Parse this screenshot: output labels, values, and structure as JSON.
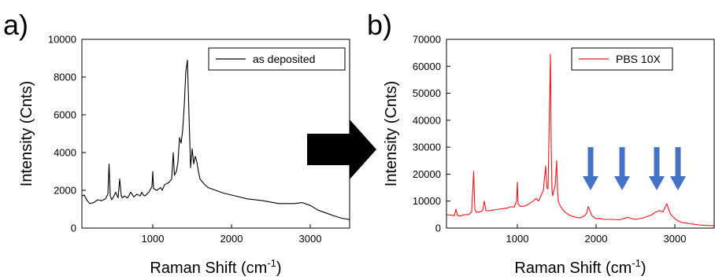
{
  "panels": {
    "a": {
      "label": "a)"
    },
    "b": {
      "label": "b)"
    }
  },
  "chart_data": [
    {
      "type": "line",
      "panel": "a)",
      "xlabel_main": "Raman Shift (cm",
      "xlabel_sup": "-1",
      "xlabel_end": ")",
      "ylabel": "Intensity (Cnts)",
      "xlim": [
        100,
        3500
      ],
      "ylim": [
        0,
        10000
      ],
      "xticks": [
        1000,
        2000,
        3000
      ],
      "xtick_labels": [
        "1000",
        "2000",
        "3000"
      ],
      "yticks": [
        0,
        2000,
        4000,
        6000,
        8000,
        10000
      ],
      "ytick_labels": [
        "0",
        "2000",
        "4000",
        "6000",
        "8000",
        "10000"
      ],
      "grid": false,
      "legend_position": "top-right",
      "series": [
        {
          "name": "as deposited",
          "color": "#000000",
          "x": [
            100,
            130,
            160,
            200,
            250,
            300,
            350,
            400,
            430,
            445,
            460,
            480,
            500,
            530,
            560,
            580,
            600,
            615,
            640,
            680,
            720,
            760,
            800,
            840,
            860,
            880,
            900,
            950,
            990,
            1000,
            1010,
            1050,
            1100,
            1120,
            1150,
            1200,
            1240,
            1260,
            1275,
            1300,
            1320,
            1340,
            1360,
            1380,
            1400,
            1420,
            1440,
            1460,
            1480,
            1500,
            1520,
            1540,
            1560,
            1580,
            1600,
            1650,
            1700,
            1800,
            1900,
            2000,
            2100,
            2200,
            2400,
            2600,
            2800,
            2900,
            3000,
            3100,
            3200,
            3300,
            3400,
            3500
          ],
          "y": [
            1700,
            1750,
            1500,
            1300,
            1350,
            1500,
            1450,
            1550,
            1800,
            3400,
            1700,
            1500,
            1650,
            1900,
            1600,
            2600,
            1700,
            1600,
            1700,
            1600,
            1900,
            1650,
            1800,
            1700,
            1900,
            1750,
            1700,
            1900,
            2200,
            3000,
            2100,
            2000,
            2150,
            2000,
            2300,
            2400,
            2600,
            4000,
            2800,
            3000,
            3500,
            4800,
            4500,
            5200,
            6500,
            8300,
            8900,
            6000,
            3200,
            4200,
            3400,
            3800,
            3500,
            3000,
            2600,
            2350,
            2150,
            2000,
            1850,
            1750,
            1650,
            1550,
            1450,
            1300,
            1300,
            1350,
            1200,
            950,
            800,
            650,
            520,
            450
          ]
        }
      ]
    },
    {
      "type": "line",
      "panel": "b)",
      "xlabel_main": "Raman Shift (cm",
      "xlabel_sup": "-1",
      "xlabel_end": ")",
      "ylabel": "Intensity (Cnts)",
      "xlim": [
        100,
        3500
      ],
      "ylim": [
        0,
        70000
      ],
      "xticks": [
        1000,
        2000,
        3000
      ],
      "xtick_labels": [
        "1000",
        "2000",
        "3000"
      ],
      "yticks": [
        0,
        10000,
        20000,
        30000,
        40000,
        50000,
        60000,
        70000
      ],
      "ytick_labels": [
        "0",
        "10000",
        "20000",
        "30000",
        "40000",
        "50000",
        "60000",
        "70000"
      ],
      "grid": false,
      "legend_position": "top-right",
      "annotations": {
        "type": "arrows",
        "color": "#4472c4",
        "x_positions": [
          1930,
          2330,
          2770,
          3040
        ],
        "tip_y": 14000,
        "tail_y": 30000
      },
      "series": [
        {
          "name": "PBS 10X",
          "color": "#e8161e",
          "x": [
            100,
            150,
            200,
            220,
            240,
            280,
            320,
            380,
            420,
            445,
            460,
            480,
            520,
            560,
            580,
            600,
            620,
            660,
            700,
            760,
            820,
            880,
            920,
            960,
            990,
            1000,
            1010,
            1040,
            1100,
            1150,
            1200,
            1240,
            1270,
            1300,
            1330,
            1360,
            1375,
            1390,
            1405,
            1420,
            1430,
            1440,
            1450,
            1465,
            1480,
            1500,
            1510,
            1520,
            1540,
            1560,
            1600,
            1650,
            1700,
            1750,
            1800,
            1850,
            1880,
            1900,
            1920,
            1950,
            2000,
            2050,
            2100,
            2200,
            2300,
            2350,
            2400,
            2450,
            2500,
            2600,
            2700,
            2750,
            2800,
            2850,
            2880,
            2900,
            2920,
            2950,
            3000,
            3050,
            3100,
            3200,
            3300,
            3400,
            3500
          ],
          "y": [
            5000,
            4800,
            4600,
            7000,
            4700,
            4500,
            5000,
            5000,
            6000,
            21000,
            7000,
            5800,
            6000,
            6500,
            10000,
            6600,
            6400,
            6500,
            6700,
            7000,
            7200,
            7500,
            8000,
            7700,
            10000,
            17000,
            9000,
            8000,
            8200,
            9000,
            10000,
            11000,
            10000,
            12000,
            14000,
            23000,
            15000,
            14500,
            40000,
            64500,
            30000,
            14000,
            12000,
            14000,
            16000,
            25000,
            14000,
            10000,
            8500,
            7500,
            6000,
            5000,
            4300,
            4000,
            3800,
            4500,
            5500,
            8000,
            6500,
            4500,
            3500,
            3600,
            3200,
            3200,
            3100,
            3500,
            4000,
            3500,
            3200,
            3800,
            4800,
            5800,
            6500,
            6000,
            8000,
            9000,
            7000,
            5000,
            3500,
            2500,
            2000,
            1600,
            1200,
            1000,
            900
          ]
        }
      ]
    }
  ]
}
